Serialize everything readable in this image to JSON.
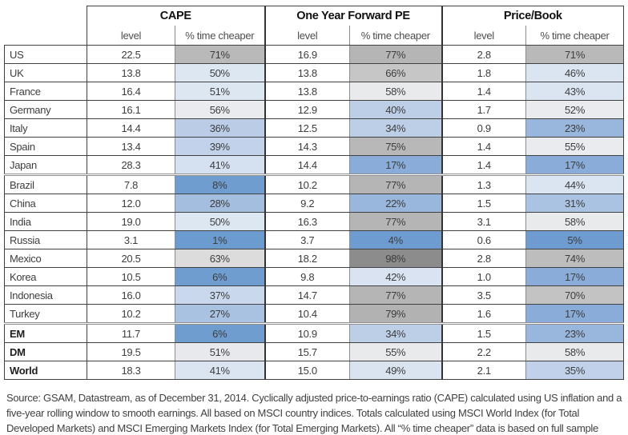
{
  "chart_data": {
    "type": "table",
    "title": "",
    "row_header": "country",
    "column_groups": [
      {
        "label": "CAPE",
        "columns": [
          "level",
          "% time cheaper"
        ]
      },
      {
        "label": "One Year Forward PE",
        "columns": [
          "level",
          "% time cheaper"
        ]
      },
      {
        "label": "Price/Book",
        "columns": [
          "level",
          "% time cheaper"
        ]
      }
    ],
    "heatmap": "percent-time-cheaper cells shaded blue (low %) to gray (high %)",
    "rows": [
      {
        "country": "US",
        "bold": false,
        "sep": false,
        "values": [
          22.5,
          71,
          16.9,
          77,
          2.8,
          71
        ],
        "pct_colors": [
          "#b9b9b9",
          "#b5b5b5",
          "#b9b9b9"
        ]
      },
      {
        "country": "UK",
        "bold": false,
        "sep": false,
        "values": [
          13.8,
          50,
          13.8,
          66,
          1.8,
          46
        ],
        "pct_colors": [
          "#dde7f2",
          "#c6c6c6",
          "#dbe5f1"
        ]
      },
      {
        "country": "France",
        "bold": false,
        "sep": false,
        "values": [
          16.4,
          51,
          13.8,
          58,
          1.4,
          43
        ],
        "pct_colors": [
          "#dde7f2",
          "#e8eaec",
          "#dbe5f1"
        ]
      },
      {
        "country": "Germany",
        "bold": false,
        "sep": false,
        "values": [
          16.1,
          56,
          12.9,
          40,
          1.7,
          52
        ],
        "pct_colors": [
          "#e9ebee",
          "#bdcee7",
          "#e9ebee"
        ]
      },
      {
        "country": "Italy",
        "bold": false,
        "sep": false,
        "values": [
          14.4,
          36,
          12.5,
          34,
          0.9,
          23
        ],
        "pct_colors": [
          "#bacce6",
          "#bdcee7",
          "#99b6dc"
        ]
      },
      {
        "country": "Spain",
        "bold": false,
        "sep": false,
        "values": [
          13.4,
          39,
          14.3,
          75,
          1.4,
          55
        ],
        "pct_colors": [
          "#c2d2ea",
          "#b8b8b8",
          "#e9ebee"
        ]
      },
      {
        "country": "Japan",
        "bold": false,
        "sep": false,
        "values": [
          28.3,
          41,
          14.4,
          17,
          1.4,
          17
        ],
        "pct_colors": [
          "#d5e0f0",
          "#89add8",
          "#89add8"
        ]
      },
      {
        "country": "Brazil",
        "bold": false,
        "sep": true,
        "values": [
          7.8,
          8,
          10.2,
          77,
          1.3,
          44
        ],
        "pct_colors": [
          "#6f9dd0",
          "#b5b5b5",
          "#dbe5f1"
        ]
      },
      {
        "country": "China",
        "bold": false,
        "sep": false,
        "values": [
          12.0,
          28,
          9.2,
          22,
          1.5,
          31
        ],
        "pct_colors": [
          "#a3bede",
          "#99b6dc",
          "#aac3e2"
        ]
      },
      {
        "country": "India",
        "bold": false,
        "sep": false,
        "values": [
          19.0,
          50,
          16.3,
          77,
          3.1,
          58
        ],
        "pct_colors": [
          "#dde7f2",
          "#b5b5b5",
          "#e8eaec"
        ]
      },
      {
        "country": "Russia",
        "bold": false,
        "sep": false,
        "values": [
          3.1,
          1,
          3.7,
          4,
          0.6,
          5
        ],
        "pct_colors": [
          "#6c9bcf",
          "#6e9cd0",
          "#6e9cd0"
        ]
      },
      {
        "country": "Mexico",
        "bold": false,
        "sep": false,
        "values": [
          20.5,
          63,
          18.2,
          98,
          2.8,
          74
        ],
        "pct_colors": [
          "#dcdcdc",
          "#8c8c8c",
          "#bdbdbd"
        ]
      },
      {
        "country": "Korea",
        "bold": false,
        "sep": false,
        "values": [
          10.5,
          6,
          9.8,
          42,
          1.0,
          17
        ],
        "pct_colors": [
          "#6f9dd0",
          "#d9e3f1",
          "#89add8"
        ]
      },
      {
        "country": "Indonesia",
        "bold": false,
        "sep": false,
        "values": [
          16.0,
          37,
          14.7,
          77,
          3.5,
          70
        ],
        "pct_colors": [
          "#c9d8ed",
          "#b5b5b5",
          "#c3c3c3"
        ]
      },
      {
        "country": "Turkey",
        "bold": false,
        "sep": false,
        "values": [
          10.2,
          27,
          10.4,
          79,
          1.6,
          17
        ],
        "pct_colors": [
          "#a9c2e2",
          "#b2b2b2",
          "#89add8"
        ]
      },
      {
        "country": "EM",
        "bold": true,
        "sep": true,
        "values": [
          11.7,
          6,
          10.9,
          34,
          1.5,
          23
        ],
        "pct_colors": [
          "#6f9dd0",
          "#bdcee7",
          "#99b6dc"
        ]
      },
      {
        "country": "DM",
        "bold": true,
        "sep": false,
        "values": [
          19.5,
          51,
          15.7,
          55,
          2.2,
          58
        ],
        "pct_colors": [
          "#e7e9ed",
          "#e8eaec",
          "#e8eaec"
        ]
      },
      {
        "country": "World",
        "bold": true,
        "sep": false,
        "values": [
          18.3,
          41,
          15.0,
          49,
          2.1,
          35
        ],
        "pct_colors": [
          "#dbe4f1",
          "#dae4f1",
          "#c1d1e9"
        ]
      }
    ]
  },
  "footer": {
    "text": "Source: GSAM, Datastream, as of December 31, 2014. Cyclically adjusted price-to-earnings ratio (CAPE) calculated using US inflation and a five-year rolling window to smooth earnings. All based on MSCI country indices. Totals calculated using MSCI World Index (for Total Developed Markets) and MSCI Emerging Markets Index (for Total Emerging Markets). All “% time cheaper” data is based on full sample history for each country. Start dates vary."
  },
  "palette": {
    "heat_low_blue": "#6c9bcf",
    "heat_mid_white": "#e9ebee",
    "heat_high_gray": "#8c8c8c",
    "border_dark": "#404040",
    "border_inner_gray": "#8c8c8c",
    "text": "#3d3d3d"
  }
}
